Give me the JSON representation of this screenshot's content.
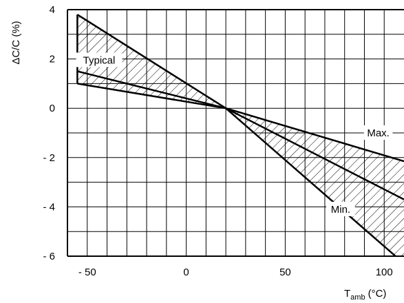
{
  "chart_data": {
    "type": "line",
    "title": "",
    "xlabel": "T",
    "xlabel_subscript": "amb",
    "xlabel_unit": "(°C)",
    "ylabel": "ΔC/C (%)",
    "xlim": [
      -60,
      110
    ],
    "ylim": [
      -6,
      4
    ],
    "grid": true,
    "x_ticks": [
      {
        "value": -50,
        "label": "- 50"
      },
      {
        "value": 0,
        "label": "0"
      },
      {
        "value": 50,
        "label": "50"
      },
      {
        "value": 100,
        "label": "100"
      }
    ],
    "y_ticks": [
      {
        "value": 4,
        "label": "4"
      },
      {
        "value": 2,
        "label": "2"
      },
      {
        "value": 0,
        "label": "0"
      },
      {
        "value": -2,
        "label": "- 2"
      },
      {
        "value": -4,
        "label": "- 4"
      },
      {
        "value": -6,
        "label": "- 6"
      }
    ],
    "series": [
      {
        "name": "Max.",
        "x": [
          -55,
          20,
          110
        ],
        "y": [
          3.8,
          0,
          -2.15
        ]
      },
      {
        "name": "Typical",
        "x": [
          -55,
          20,
          110
        ],
        "y": [
          1.5,
          0,
          -3.7
        ]
      },
      {
        "name": "Min.",
        "x": [
          -55,
          20,
          110
        ],
        "y": [
          1.0,
          0,
          -6.3
        ]
      }
    ],
    "annotations": [
      {
        "text": "Typical",
        "x": -44,
        "y": 1.95
      },
      {
        "text": "Max.",
        "x": 97,
        "y": -1.0
      },
      {
        "text": "Min.",
        "x": 78,
        "y": -4.1
      }
    ]
  }
}
